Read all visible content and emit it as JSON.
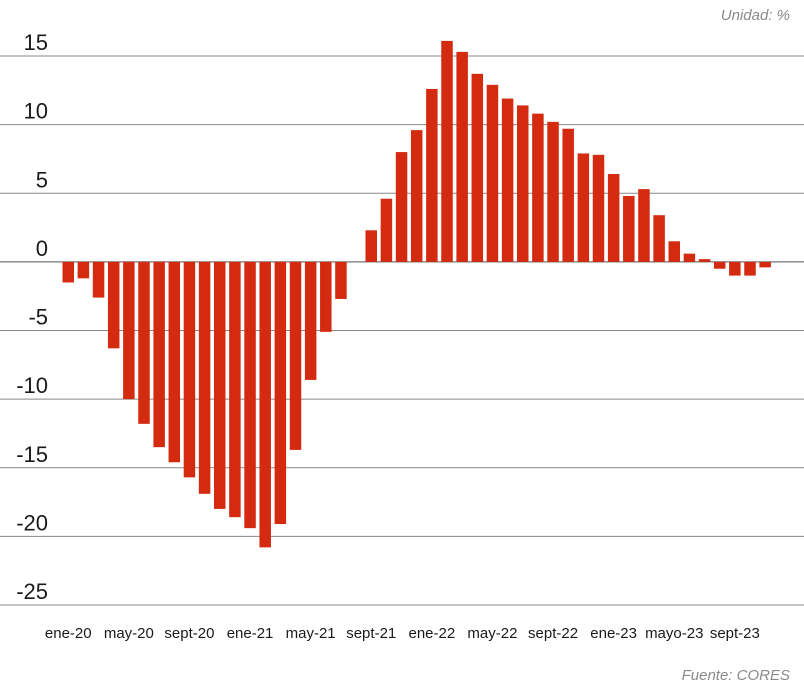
{
  "chart_data": {
    "type": "bar",
    "unit_label": "Unidad: %",
    "source_label": "Fuente: CORES",
    "ylim": [
      -25,
      15
    ],
    "yticks": [
      15,
      10,
      5,
      0,
      -5,
      -10,
      -15,
      -20,
      -25
    ],
    "grid": true,
    "bar_color": "#d42b10",
    "x_tick_labels": [
      {
        "label": "ene-20",
        "index": 0
      },
      {
        "label": "may-20",
        "index": 4
      },
      {
        "label": "sept-20",
        "index": 8
      },
      {
        "label": "ene-21",
        "index": 12
      },
      {
        "label": "may-21",
        "index": 16
      },
      {
        "label": "sept-21",
        "index": 20
      },
      {
        "label": "ene-22",
        "index": 24
      },
      {
        "label": "may-22",
        "index": 28
      },
      {
        "label": "sept-22",
        "index": 32
      },
      {
        "label": "ene-23",
        "index": 36
      },
      {
        "label": "mayo-23",
        "index": 40
      },
      {
        "label": "sept-23",
        "index": 44
      }
    ],
    "categories": [
      "ene-20",
      "feb-20",
      "mar-20",
      "abr-20",
      "may-20",
      "jun-20",
      "jul-20",
      "ago-20",
      "sept-20",
      "oct-20",
      "nov-20",
      "dic-20",
      "ene-21",
      "feb-21",
      "mar-21",
      "abr-21",
      "may-21",
      "jun-21",
      "jul-21",
      "ago-21",
      "sept-21",
      "oct-21",
      "nov-21",
      "dic-21",
      "ene-22",
      "feb-22",
      "mar-22",
      "abr-22",
      "may-22",
      "jun-22",
      "jul-22",
      "ago-22",
      "sept-22",
      "oct-22",
      "nov-22",
      "dic-22",
      "ene-23",
      "feb-23",
      "mar-23",
      "abr-23",
      "mayo-23",
      "jun-23",
      "jul-23",
      "ago-23",
      "sept-23",
      "oct-23",
      "nov-23",
      "dic-23"
    ],
    "values": [
      -1.5,
      -1.2,
      -2.6,
      -6.3,
      -10.0,
      -11.8,
      -13.5,
      -14.6,
      -15.7,
      -16.9,
      -18.0,
      -18.6,
      -19.4,
      -20.8,
      -19.1,
      -13.7,
      -8.6,
      -5.1,
      -2.7,
      null,
      2.3,
      4.6,
      8.0,
      9.6,
      12.6,
      16.1,
      15.3,
      13.7,
      12.9,
      11.9,
      11.4,
      10.8,
      10.2,
      9.7,
      7.9,
      7.8,
      6.4,
      4.8,
      5.3,
      3.4,
      1.5,
      0.6,
      0.2,
      -0.5,
      -1.0,
      -1.0,
      -0.4,
      null
    ]
  }
}
